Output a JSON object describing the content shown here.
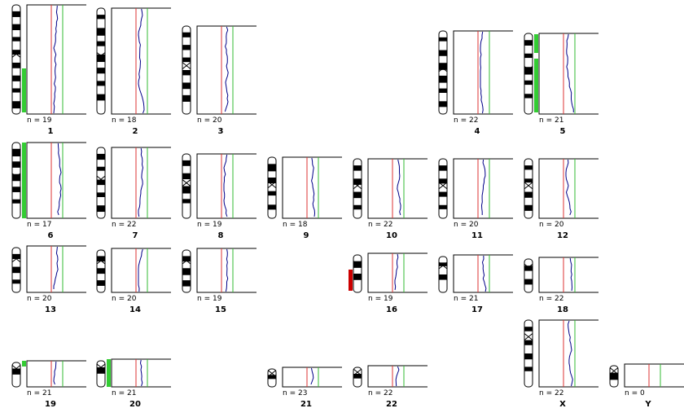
{
  "panels": [
    {
      "n": "n = 19",
      "label": "1"
    },
    {
      "n": "n = 18",
      "label": "2"
    },
    {
      "n": "n = 20",
      "label": "3"
    },
    {
      "n": "n = 22",
      "label": "4"
    },
    {
      "n": "n = 21",
      "label": "5"
    },
    {
      "n": "n = 17",
      "label": "6"
    },
    {
      "n": "n = 22",
      "label": "7"
    },
    {
      "n": "n = 19",
      "label": "8"
    },
    {
      "n": "n = 18",
      "label": "9"
    },
    {
      "n": "n = 22",
      "label": "10"
    },
    {
      "n": "n = 20",
      "label": "11"
    },
    {
      "n": "n = 20",
      "label": "12"
    },
    {
      "n": "n = 20",
      "label": "13"
    },
    {
      "n": "n = 20",
      "label": "14"
    },
    {
      "n": "n = 19",
      "label": "15"
    },
    {
      "n": "n = 19",
      "label": "16"
    },
    {
      "n": "n = 21",
      "label": "17"
    },
    {
      "n": "n = 22",
      "label": "18"
    },
    {
      "n": "n = 21",
      "label": "19"
    },
    {
      "n": "n = 21",
      "label": "20"
    },
    {
      "n": "n = 23",
      "label": "21"
    },
    {
      "n": "n = 22",
      "label": "22"
    },
    {
      "n": "n = 22",
      "label": "X"
    },
    {
      "n": "n = 0",
      "label": "Y"
    }
  ]
}
